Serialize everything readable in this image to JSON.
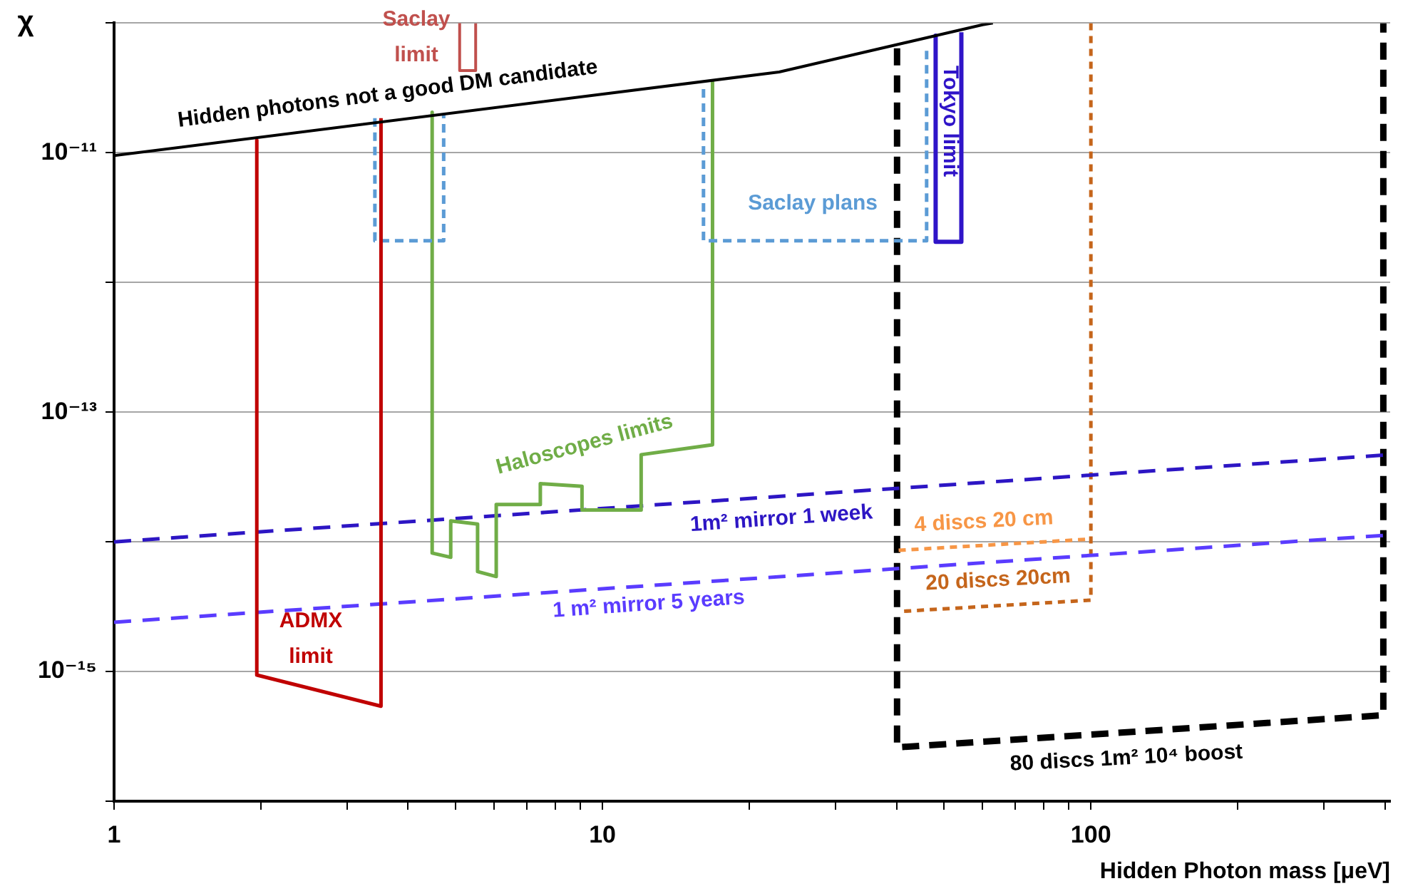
{
  "chart_data": {
    "type": "line",
    "xlabel": "Hidden Photon mass [μeV]",
    "ylabel": "χ",
    "log": "xy",
    "grid": "y",
    "legend": false,
    "marker": "none",
    "xlim": [
      1,
      410
    ],
    "ylim": [
      1e-16,
      1e-10
    ],
    "xticks": [
      1,
      {
        "value": 2,
        "label": null
      },
      {
        "value": 3,
        "label": null
      },
      {
        "value": 4,
        "label": null
      },
      {
        "value": 5,
        "label": null
      },
      {
        "value": 6,
        "label": null
      },
      {
        "value": 7,
        "label": null
      },
      {
        "value": 8,
        "label": null
      },
      {
        "value": 9,
        "label": null
      },
      10,
      {
        "value": 20,
        "label": null
      },
      {
        "value": 30,
        "label": null
      },
      {
        "value": 40,
        "label": null
      },
      {
        "value": 50,
        "label": null
      },
      {
        "value": 60,
        "label": null
      },
      {
        "value": 70,
        "label": null
      },
      {
        "value": 80,
        "label": null
      },
      {
        "value": 90,
        "label": null
      },
      100,
      {
        "value": 200,
        "label": null
      },
      {
        "value": 300,
        "label": null
      },
      {
        "value": 400,
        "label": null
      }
    ],
    "yticks": [
      {
        "value": 1e-16,
        "label": null
      },
      {
        "value": 1e-15,
        "label": "10⁻¹⁵"
      },
      {
        "value": 1e-14,
        "label": null
      },
      {
        "value": 1e-13,
        "label": "10⁻¹³"
      },
      {
        "value": 1e-12,
        "label": null
      },
      {
        "value": 1e-11,
        "label": "10⁻¹¹"
      },
      {
        "value": 1e-10,
        "label": null
      }
    ],
    "series": [
      {
        "name": "Hidden photons not a good DM candidate",
        "type": "line",
        "color": "#000000",
        "line_style": "solid",
        "x": [
          1,
          23,
          60,
          63
        ],
        "values": [
          9.5e-12,
          4.2e-11,
          9.7e-11,
          1e-10
        ]
      },
      {
        "name": "ADMX limit",
        "type": "line",
        "color": "#c00000",
        "line_style": "solid",
        "x": [
          1.96,
          1.96,
          3.52,
          3.52
        ],
        "values": [
          1.25e-11,
          9.4e-16,
          5.4e-16,
          1.85e-11
        ]
      },
      {
        "name": "Saclay limit",
        "type": "line",
        "color": "#c0504d",
        "line_style": "solid",
        "x": [
          5.1,
          5.1,
          5.5,
          5.5
        ],
        "values": [
          1e-10,
          4.3e-11,
          4.3e-11,
          1e-10
        ]
      },
      {
        "name": "Saclay plans",
        "type": "line",
        "color": "#5b9bd5",
        "line_style": "dashed",
        "x": [
          3.42,
          3.42,
          4.73,
          4.73,
          null,
          16.1,
          16.1,
          46.1,
          46.1
        ],
        "values": [
          1.85e-11,
          2.1e-12,
          2.1e-12,
          2e-11,
          null,
          3.1e-11,
          2.1e-12,
          2.1e-12,
          6.4e-11
        ]
      },
      {
        "name": "Haloscopes limits",
        "type": "line",
        "color": "#70ad47",
        "line_style": "solid",
        "x": [
          4.48,
          4.48,
          4.89,
          4.89,
          5.55,
          5.55,
          6.06,
          6.06,
          7.46,
          7.46,
          9.08,
          9.08,
          12,
          12,
          16.8,
          16.8
        ],
        "values": [
          2.05e-11,
          8.2e-15,
          7.6e-15,
          1.45e-14,
          1.37e-14,
          5.9e-15,
          5.4e-15,
          1.94e-14,
          1.94e-14,
          2.81e-14,
          2.68e-14,
          1.76e-14,
          1.76e-14,
          4.7e-14,
          5.6e-14,
          3.7e-11
        ]
      },
      {
        "name": "Tokyo limit",
        "type": "line",
        "color": "#2f14c8",
        "line_style": "solid",
        "x": [
          48.1,
          48.1,
          54.3,
          54.3
        ],
        "values": [
          8e-11,
          2.06e-12,
          2.06e-12,
          8.5e-11
        ]
      },
      {
        "name": "1m² mirror 1 week",
        "type": "line",
        "color": "#2d16c4",
        "line_style": "dashed",
        "x": [
          1,
          410
        ],
        "values": [
          1e-14,
          4.7e-14
        ]
      },
      {
        "name": "1 m² mirror 5 years",
        "type": "line",
        "color": "#5a3cff",
        "line_style": "dashed",
        "x": [
          1,
          410
        ],
        "values": [
          2.4e-15,
          1.13e-14
        ]
      },
      {
        "name": "4 discs 20 cm",
        "type": "line",
        "color": "#f79646",
        "line_style": "dashed",
        "x": [
          40.4,
          100
        ],
        "values": [
          8.6e-15,
          1.05e-14
        ]
      },
      {
        "name": "20 discs 20cm",
        "type": "line",
        "color": "#c5651b",
        "line_style": "dashed",
        "x": [
          100,
          100,
          40.4
        ],
        "values": [
          1e-10,
          3.55e-15,
          2.9e-15
        ]
      },
      {
        "name": "80 discs 1m² 10⁴ boost",
        "type": "line",
        "color": "#000000",
        "line_style": "dashed",
        "x": [
          40.1,
          40.1,
          397,
          397
        ],
        "values": [
          6.4e-11,
          2.6e-16,
          4.6e-16,
          1e-10
        ]
      }
    ]
  }
}
